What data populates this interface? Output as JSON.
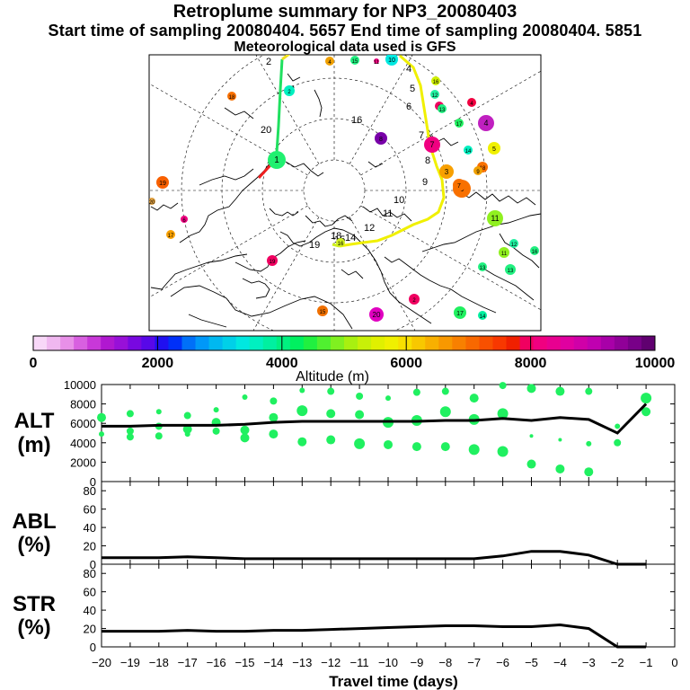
{
  "header": {
    "title": "Retroplume summary for NP3_20080403",
    "sampling_line": "Start time of sampling 20080404.  5657     End time of sampling 20080404.  5851",
    "met_line": "Meteorological data used is GFS"
  },
  "colorbar": {
    "label": "Altitude (m)",
    "tick_labels": [
      "0",
      "2000",
      "4000",
      "6000",
      "8000",
      "10000"
    ],
    "min": 0,
    "max": 10000,
    "colors": [
      "#f8d8f8",
      "#f0b8f0",
      "#e890e8",
      "#d860e0",
      "#c838d8",
      "#b018d0",
      "#9810d8",
      "#7808e0",
      "#5808e8",
      "#2010f0",
      "#0030f8",
      "#0070f8",
      "#0098f8",
      "#00b8f0",
      "#00d0e8",
      "#00e8e0",
      "#00f0c0",
      "#00f0a0",
      "#00f080",
      "#00f060",
      "#20f040",
      "#50f030",
      "#80f020",
      "#a8f010",
      "#c8f008",
      "#e0f000",
      "#f0f000",
      "#f8e000",
      "#f8c800",
      "#f8b000",
      "#f89800",
      "#f88000",
      "#f86800",
      "#f85000",
      "#f83800",
      "#f02000",
      "#f00060",
      "#f00080",
      "#e80090",
      "#e000a0",
      "#d000a8",
      "#c000b0",
      "#a800a8",
      "#900098",
      "#780088",
      "#600070"
    ]
  },
  "map": {
    "trajectory_day_labels": [
      "2",
      "3",
      "4",
      "5",
      "6",
      "7",
      "8",
      "9",
      "10",
      "11",
      "12",
      "14",
      "15",
      "16",
      "18",
      "19",
      "20"
    ],
    "cluster_labels": [
      "1",
      "2",
      "3",
      "4",
      "5",
      "6",
      "7",
      "8",
      "9",
      "10",
      "11",
      "12",
      "13",
      "14",
      "15",
      "16",
      "17",
      "18",
      "19",
      "20"
    ]
  },
  "chart_data": [
    {
      "type": "scatter+line",
      "panel": "ALT",
      "ylabel_line1": "ALT",
      "ylabel_line2": "(m)",
      "ylim": [
        0,
        10000
      ],
      "yticks": [
        0,
        2000,
        4000,
        6000,
        8000,
        10000
      ],
      "ytick_labels": [
        "0",
        "2000",
        "4000",
        "6000",
        "8000",
        "10000"
      ],
      "xlim": [
        -20,
        0
      ],
      "mean_altitude_line": {
        "x": [
          -20,
          -19,
          -18,
          -17,
          -16,
          -15,
          -14,
          -13,
          -12,
          -11,
          -10,
          -9,
          -8,
          -7,
          -6,
          -5,
          -4,
          -3,
          -2,
          -1
        ],
        "y": [
          5700,
          5700,
          5800,
          5800,
          5800,
          5900,
          6100,
          6200,
          6200,
          6200,
          6200,
          6200,
          6300,
          6300,
          6500,
          6300,
          6600,
          6400,
          5000,
          8000
        ]
      },
      "cluster_points": {
        "x": [
          -20,
          -20,
          -19,
          -19,
          -19,
          -18,
          -18,
          -18,
          -17,
          -17,
          -17,
          -16,
          -16,
          -16,
          -15,
          -15,
          -15,
          -14,
          -14,
          -14,
          -13,
          -13,
          -13,
          -12,
          -12,
          -12,
          -11,
          -11,
          -11,
          -10,
          -10,
          -10,
          -9,
          -9,
          -9,
          -8,
          -8,
          -8,
          -7,
          -7,
          -7,
          -6,
          -6,
          -6,
          -5,
          -5,
          -5,
          -4,
          -4,
          -4,
          -3,
          -3,
          -3,
          -2,
          -2,
          -1,
          -1
        ],
        "y": [
          6600,
          4900,
          7000,
          5200,
          4600,
          7200,
          5700,
          4700,
          6800,
          5400,
          4900,
          7400,
          6100,
          5200,
          8700,
          5300,
          4500,
          8300,
          6600,
          4900,
          9400,
          7300,
          4100,
          9300,
          7000,
          4300,
          8800,
          6900,
          3900,
          8600,
          6100,
          3800,
          9200,
          6300,
          3600,
          9300,
          7200,
          3600,
          8600,
          6400,
          3300,
          9900,
          7000,
          3100,
          9600,
          4700,
          1800,
          9300,
          4300,
          1300,
          9300,
          3900,
          1000,
          5700,
          4000,
          8600,
          7200
        ],
        "size": [
          5,
          3,
          4,
          4,
          4,
          3,
          4,
          4,
          4,
          5,
          3,
          3,
          5,
          4,
          3,
          5,
          5,
          4,
          5,
          5,
          3,
          6,
          5,
          4,
          5,
          5,
          4,
          5,
          6,
          3,
          6,
          5,
          4,
          6,
          5,
          4,
          6,
          5,
          5,
          6,
          6,
          4,
          6,
          6,
          5,
          2,
          5,
          5,
          2,
          5,
          4,
          3,
          5,
          3,
          4,
          6,
          5
        ],
        "color": "#20f060"
      }
    },
    {
      "type": "line",
      "panel": "ABL",
      "ylabel_line1": "ABL",
      "ylabel_line2": "(%)",
      "ylim": [
        0,
        90
      ],
      "yticks": [
        0,
        20,
        40,
        60,
        80
      ],
      "ytick_labels": [
        "0",
        "20",
        "40",
        "60",
        "80"
      ],
      "xlim": [
        -20,
        0
      ],
      "x": [
        -20,
        -19,
        -18,
        -17,
        -16,
        -15,
        -14,
        -13,
        -12,
        -11,
        -10,
        -9,
        -8,
        -7,
        -6,
        -5,
        -4,
        -3,
        -2,
        -1
      ],
      "y": [
        7,
        7,
        7,
        8,
        7,
        6,
        6,
        6,
        6,
        6,
        6,
        6,
        6,
        6,
        9,
        14,
        14,
        10,
        0,
        0
      ]
    },
    {
      "type": "line",
      "panel": "STR",
      "ylabel_line1": "STR",
      "ylabel_line2": "(%)",
      "ylim": [
        0,
        90
      ],
      "yticks": [
        0,
        20,
        40,
        60,
        80
      ],
      "ytick_labels": [
        "0",
        "20",
        "40",
        "60",
        "80"
      ],
      "xlim": [
        -20,
        0
      ],
      "xticks": [
        -20,
        -19,
        -18,
        -17,
        -16,
        -15,
        -14,
        -13,
        -12,
        -11,
        -10,
        -9,
        -8,
        -7,
        -6,
        -5,
        -4,
        -3,
        -2,
        -1,
        0
      ],
      "xtick_labels": [
        "−20",
        "−19",
        "−18",
        "−17",
        "−16",
        "−15",
        "−14",
        "−13",
        "−12",
        "−11",
        "−10",
        "−9",
        "−8",
        "−7",
        "−6",
        "−5",
        "−4",
        "−3",
        "−2",
        "−1",
        "0"
      ],
      "xlabel": "Travel time (days)",
      "x": [
        -20,
        -19,
        -18,
        -17,
        -16,
        -15,
        -14,
        -13,
        -12,
        -11,
        -10,
        -9,
        -8,
        -7,
        -6,
        -5,
        -4,
        -3,
        -2,
        -1
      ],
      "y": [
        17,
        17,
        17,
        18,
        17,
        17,
        18,
        18,
        19,
        20,
        21,
        22,
        23,
        23,
        22,
        22,
        24,
        20,
        0,
        0
      ]
    }
  ]
}
